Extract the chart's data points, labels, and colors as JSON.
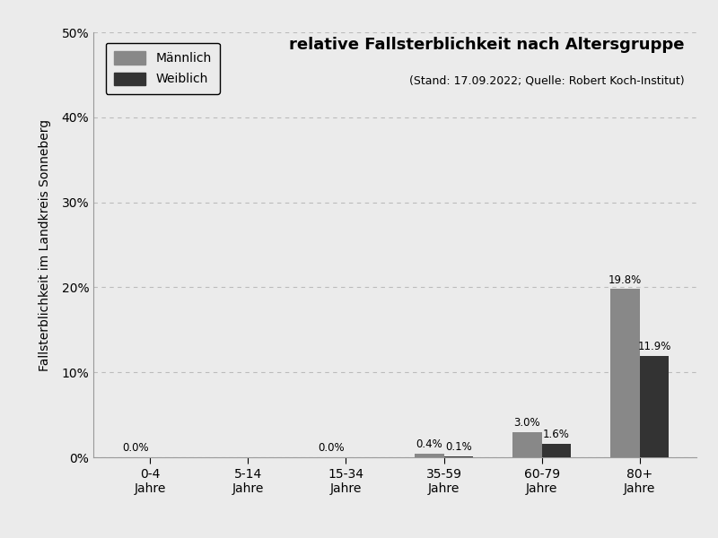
{
  "categories": [
    "0-4\nJahre",
    "5-14\nJahre",
    "15-34\nJahre",
    "35-59\nJahre",
    "60-79\nJahre",
    "80+\nJahre"
  ],
  "maennlich_values": [
    0.0,
    0.0,
    0.0,
    0.4,
    3.0,
    19.8
  ],
  "weiblich_values": [
    0.0,
    0.0,
    0.0,
    0.1,
    1.6,
    11.9
  ],
  "maennlich_color": "#888888",
  "weiblich_color": "#333333",
  "title": "relative Fallsterblichkeit nach Altersgruppe",
  "subtitle": "(Stand: 17.09.2022; Quelle: Robert Koch-Institut)",
  "ylabel": "Fallsterblichkeit im Landkreis Sonneberg",
  "ylim": [
    0,
    50
  ],
  "yticks": [
    0,
    10,
    20,
    30,
    40,
    50
  ],
  "ytick_labels": [
    "0%",
    "10%",
    "20%",
    "30%",
    "40%",
    "50%"
  ],
  "legend_maennlich": "Männlich",
  "legend_weiblich": "Weiblich",
  "bar_width": 0.3,
  "background_color": "#ebebeb",
  "grid_color": "#bbbbbb",
  "title_fontsize": 13,
  "subtitle_fontsize": 9,
  "label_fontsize": 10,
  "tick_fontsize": 10,
  "annotation_fontsize": 8.5,
  "annotate_indices": [
    2,
    3,
    4,
    5
  ],
  "annotate_maennlich": [
    true,
    false,
    true,
    true,
    true,
    true
  ],
  "annotate_weiblich": [
    false,
    false,
    false,
    true,
    true,
    true
  ]
}
